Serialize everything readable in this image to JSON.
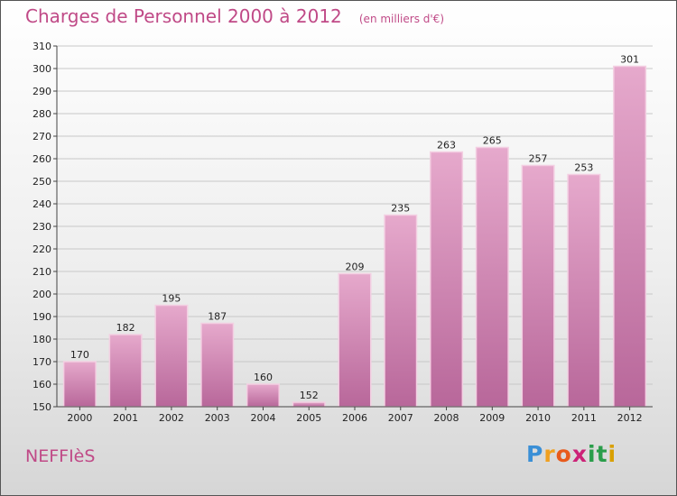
{
  "page": {
    "commune": "NEFFIèS",
    "logo_letters": [
      "P",
      "r",
      "o",
      "x",
      "i",
      "t",
      "i"
    ],
    "logo_colors": [
      "#3a8fd6",
      "#f0a020",
      "#e85a1b",
      "#cc2277",
      "#2a9d4a",
      "#2a9d4a",
      "#d9a000"
    ]
  },
  "chart_data": {
    "type": "bar",
    "title": "Charges de Personnel 2000 à 2012",
    "subtitle": "(en milliers d'€)",
    "categories": [
      "2000",
      "2001",
      "2002",
      "2003",
      "2004",
      "2005",
      "2006",
      "2007",
      "2008",
      "2009",
      "2010",
      "2011",
      "2012"
    ],
    "values": [
      170,
      182,
      195,
      187,
      160,
      152,
      209,
      235,
      263,
      265,
      257,
      253,
      301
    ],
    "ylim": [
      150,
      310
    ],
    "yticks": [
      150,
      160,
      170,
      180,
      190,
      200,
      210,
      220,
      230,
      240,
      250,
      260,
      270,
      280,
      290,
      300,
      310
    ],
    "grid": true,
    "bar_color": "#d98ab8",
    "bar_color_top": "#e6a9cc",
    "bar_color_bottom": "#b8679a"
  }
}
